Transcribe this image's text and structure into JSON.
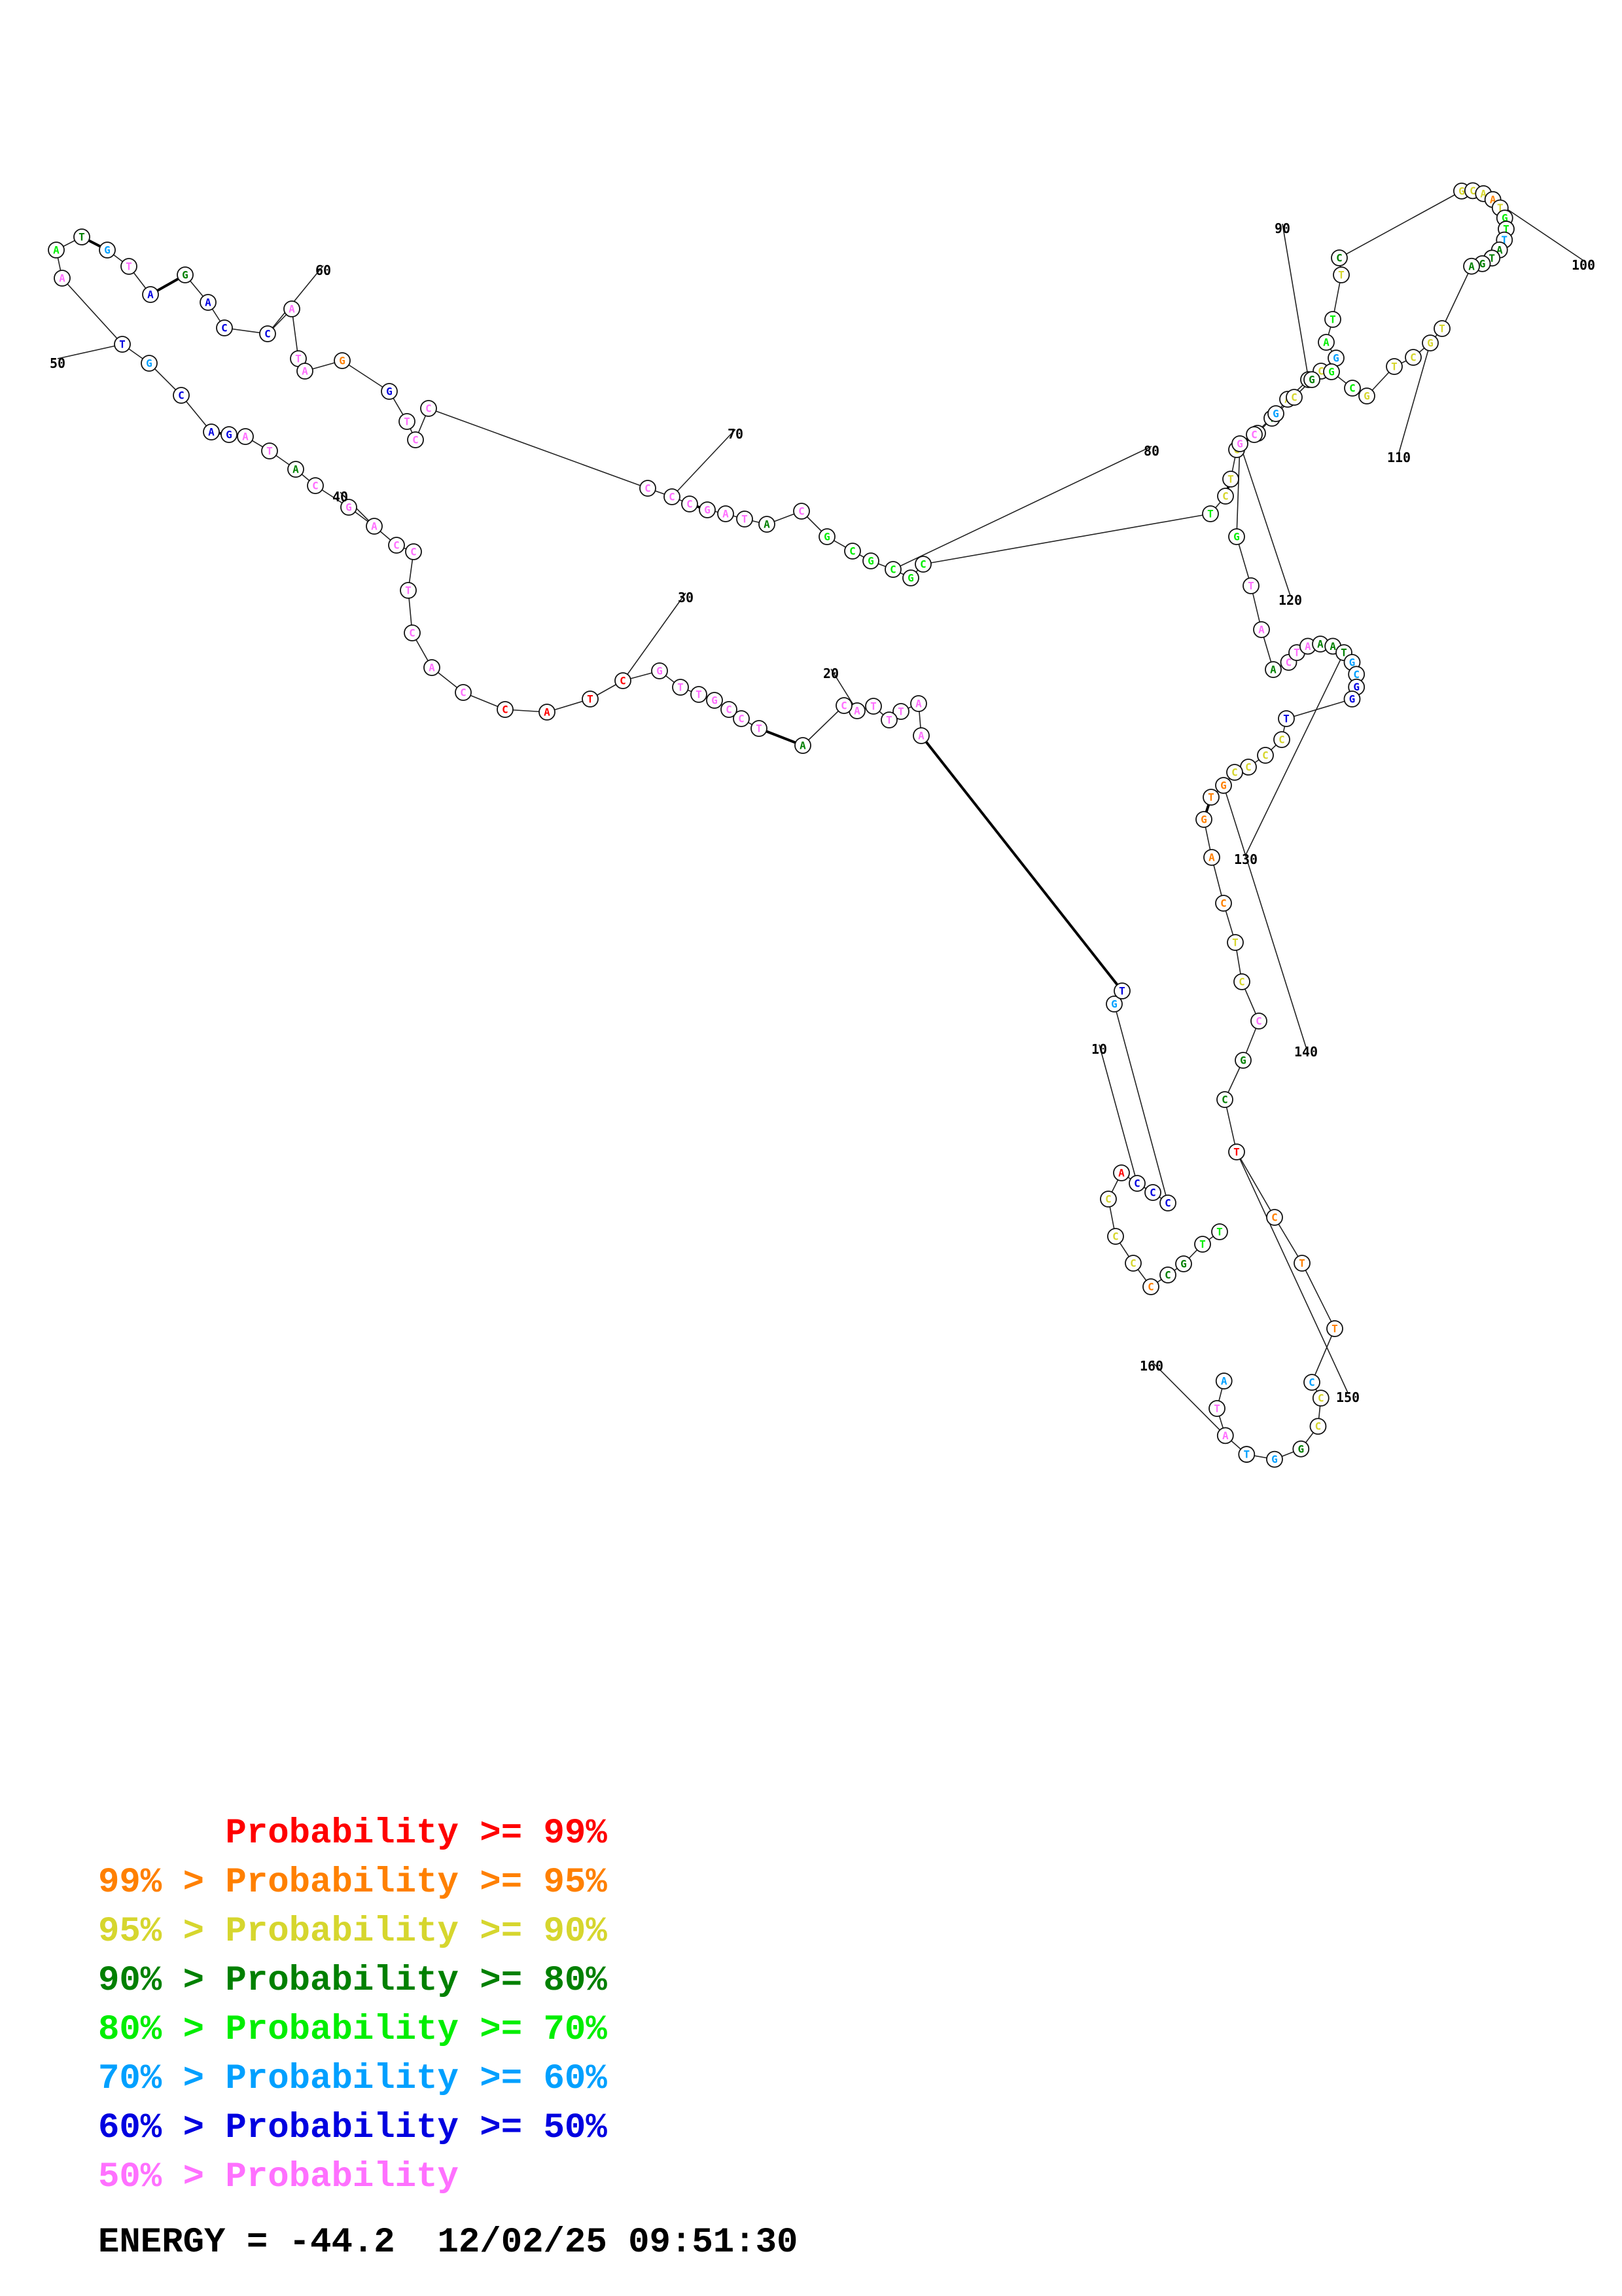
{
  "colors": {
    "p99": "#ff0000",
    "p95": "#ff8000",
    "p90": "#d6d62e",
    "p80": "#008000",
    "p70": "#00ee00",
    "p60": "#00a0ff",
    "p50": "#0000e0",
    "plow": "#ff70ff"
  },
  "sequence": [
    [
      "T",
      "p70"
    ],
    [
      "T",
      "p70"
    ],
    [
      "G",
      "p80"
    ],
    [
      "C",
      "p80"
    ],
    [
      "C",
      "p95"
    ],
    [
      "C",
      "p90"
    ],
    [
      "C",
      "p90"
    ],
    [
      "C",
      "p90"
    ],
    [
      "A",
      "p99"
    ],
    [
      "C",
      "p50"
    ],
    [
      "C",
      "p50"
    ],
    [
      "C",
      "p50"
    ],
    [
      "G",
      "p60"
    ],
    [
      "T",
      "p50"
    ],
    [
      "A",
      "plow"
    ],
    [
      "A",
      "plow"
    ],
    [
      "T",
      "plow"
    ],
    [
      "T",
      "plow"
    ],
    [
      "T",
      "plow"
    ],
    [
      "A",
      "plow"
    ],
    [
      "C",
      "plow"
    ],
    [
      "A",
      "p80"
    ],
    [
      "T",
      "plow"
    ],
    [
      "C",
      "plow"
    ],
    [
      "C",
      "plow"
    ],
    [
      "G",
      "plow"
    ],
    [
      "T",
      "plow"
    ],
    [
      "T",
      "plow"
    ],
    [
      "G",
      "plow"
    ],
    [
      "C",
      "p99"
    ],
    [
      "T",
      "p99"
    ],
    [
      "A",
      "p99"
    ],
    [
      "C",
      "p99"
    ],
    [
      "C",
      "plow"
    ],
    [
      "A",
      "plow"
    ],
    [
      "C",
      "plow"
    ],
    [
      "T",
      "plow"
    ],
    [
      "C",
      "plow"
    ],
    [
      "C",
      "plow"
    ],
    [
      "A",
      "plow"
    ],
    [
      "G",
      "plow"
    ],
    [
      "C",
      "plow"
    ],
    [
      "A",
      "p80"
    ],
    [
      "T",
      "plow"
    ],
    [
      "A",
      "plow"
    ],
    [
      "G",
      "p50"
    ],
    [
      "A",
      "p50"
    ],
    [
      "C",
      "p50"
    ],
    [
      "G",
      "p60"
    ],
    [
      "T",
      "p50"
    ],
    [
      "A",
      "plow"
    ],
    [
      "A",
      "p70"
    ],
    [
      "T",
      "p80"
    ],
    [
      "G",
      "p60"
    ],
    [
      "T",
      "plow"
    ],
    [
      "A",
      "p50"
    ],
    [
      "G",
      "p80"
    ],
    [
      "A",
      "p50"
    ],
    [
      "C",
      "p50"
    ],
    [
      "C",
      "p50"
    ],
    [
      "A",
      "plow"
    ],
    [
      "T",
      "plow"
    ],
    [
      "A",
      "plow"
    ],
    [
      "G",
      "p95"
    ],
    [
      "G",
      "p50"
    ],
    [
      "T",
      "plow"
    ],
    [
      "C",
      "plow"
    ],
    [
      "C",
      "plow"
    ],
    [
      "C",
      "plow"
    ],
    [
      "C",
      "plow"
    ],
    [
      "C",
      "plow"
    ],
    [
      "G",
      "plow"
    ],
    [
      "A",
      "plow"
    ],
    [
      "T",
      "plow"
    ],
    [
      "A",
      "p80"
    ],
    [
      "C",
      "plow"
    ],
    [
      "G",
      "p70"
    ],
    [
      "C",
      "p70"
    ],
    [
      "G",
      "p70"
    ],
    [
      "C",
      "p70"
    ],
    [
      "G",
      "p70"
    ],
    [
      "C",
      "p70"
    ],
    [
      "T",
      "p70"
    ],
    [
      "C",
      "p90"
    ],
    [
      "T",
      "p90"
    ],
    [
      "C",
      "p90"
    ],
    [
      "G",
      "p90"
    ],
    [
      "T",
      "p80"
    ],
    [
      "A",
      "p90"
    ],
    [
      "T",
      "p80"
    ],
    [
      "C",
      "p90"
    ],
    [
      "G",
      "p60"
    ],
    [
      "A",
      "p70"
    ],
    [
      "T",
      "p70"
    ],
    [
      "T",
      "p90"
    ],
    [
      "C",
      "p80"
    ],
    [
      "G",
      "p90"
    ],
    [
      "C",
      "p90"
    ],
    [
      "A",
      "p90"
    ],
    [
      "A",
      "p95"
    ],
    [
      "T",
      "p90"
    ],
    [
      "G",
      "p70"
    ],
    [
      "T",
      "p70"
    ],
    [
      "T",
      "p60"
    ],
    [
      "A",
      "p80"
    ],
    [
      "T",
      "p80"
    ],
    [
      "G",
      "p80"
    ],
    [
      "A",
      "p80"
    ],
    [
      "T",
      "p90"
    ],
    [
      "G",
      "p90"
    ],
    [
      "C",
      "p90"
    ],
    [
      "T",
      "p90"
    ],
    [
      "G",
      "p90"
    ],
    [
      "C",
      "p70"
    ],
    [
      "G",
      "p70"
    ],
    [
      "G",
      "p80"
    ],
    [
      "C",
      "p90"
    ],
    [
      "G",
      "p60"
    ],
    [
      "C",
      "plow"
    ],
    [
      "G",
      "plow"
    ],
    [
      "G",
      "p70"
    ],
    [
      "T",
      "plow"
    ],
    [
      "A",
      "plow"
    ],
    [
      "A",
      "p80"
    ],
    [
      "C",
      "plow"
    ],
    [
      "T",
      "plow"
    ],
    [
      "A",
      "plow"
    ],
    [
      "A",
      "p80"
    ],
    [
      "A",
      "p80"
    ],
    [
      "T",
      "p80"
    ],
    [
      "G",
      "p60"
    ],
    [
      "C",
      "p60"
    ],
    [
      "G",
      "p50"
    ],
    [
      "G",
      "p50"
    ],
    [
      "T",
      "p50"
    ],
    [
      "C",
      "p90"
    ],
    [
      "C",
      "p90"
    ],
    [
      "C",
      "p90"
    ],
    [
      "C",
      "p90"
    ],
    [
      "G",
      "p95"
    ],
    [
      "T",
      "p95"
    ],
    [
      "G",
      "p95"
    ],
    [
      "A",
      "p95"
    ],
    [
      "C",
      "p95"
    ],
    [
      "T",
      "p90"
    ],
    [
      "C",
      "p90"
    ],
    [
      "C",
      "plow"
    ],
    [
      "G",
      "p80"
    ],
    [
      "C",
      "p80"
    ],
    [
      "T",
      "p99"
    ],
    [
      "C",
      "p95"
    ],
    [
      "T",
      "p95"
    ],
    [
      "T",
      "p95"
    ],
    [
      "C",
      "p60"
    ],
    [
      "C",
      "p90"
    ],
    [
      "C",
      "p90"
    ],
    [
      "G",
      "p80"
    ],
    [
      "G",
      "p60"
    ],
    [
      "T",
      "p60"
    ],
    [
      "A",
      "plow"
    ],
    [
      "T",
      "plow"
    ],
    [
      "A",
      "p60"
    ]
  ],
  "position_labels": [
    "10",
    "20",
    "30",
    "40",
    "50",
    "60",
    "70",
    "80",
    "90",
    "100",
    "110",
    "120",
    "130",
    "140",
    "150",
    "160"
  ],
  "legend": [
    {
      "text": "      Probability >= 99%",
      "color": "p99"
    },
    {
      "text": "99% > Probability >= 95%",
      "color": "p95"
    },
    {
      "text": "95% > Probability >= 90%",
      "color": "p90"
    },
    {
      "text": "90% > Probability >= 80%",
      "color": "p80"
    },
    {
      "text": "80% > Probability >= 70%",
      "color": "p70"
    },
    {
      "text": "70% > Probability >= 60%",
      "color": "p60"
    },
    {
      "text": "60% > Probability >= 50%",
      "color": "p50"
    },
    {
      "text": "50% > Probability",
      "color": "plow"
    }
  ],
  "energy": "ENERGY = -44.2  12/02/25 09:51:30"
}
